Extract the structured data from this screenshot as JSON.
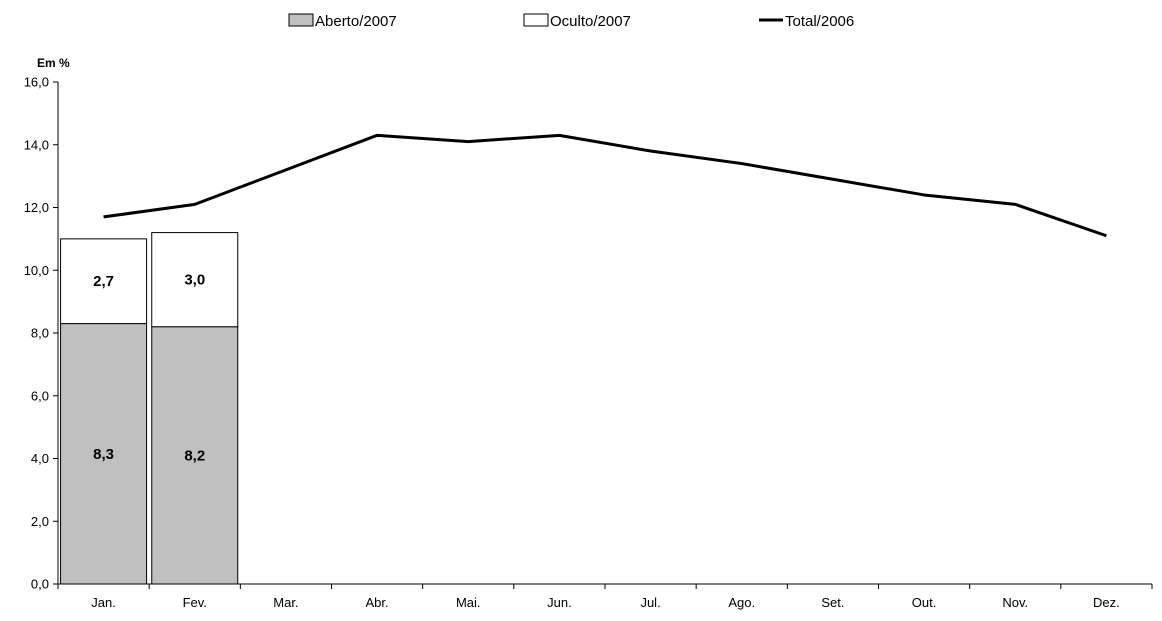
{
  "chart_data": {
    "type": "bar",
    "ylabel": "Em %",
    "xlabel": "",
    "ylim": [
      0,
      16
    ],
    "yticks": [
      "0,0",
      "2,0",
      "4,0",
      "6,0",
      "8,0",
      "10,0",
      "12,0",
      "14,0",
      "16,0"
    ],
    "ytick_values": [
      0,
      2,
      4,
      6,
      8,
      10,
      12,
      14,
      16
    ],
    "categories": [
      "Jan.",
      "Fev.",
      "Mar.",
      "Abr.",
      "Mai.",
      "Jun.",
      "Jul.",
      "Ago.",
      "Set.",
      "Out.",
      "Nov.",
      "Dez."
    ],
    "legend_position": "top-center",
    "grid": false,
    "series": [
      {
        "name": "Aberto/2007",
        "kind": "bar",
        "color": "#c0c0c0",
        "values": [
          8.3,
          8.2,
          null,
          null,
          null,
          null,
          null,
          null,
          null,
          null,
          null,
          null
        ],
        "labels": [
          "8,3",
          "8,2"
        ]
      },
      {
        "name": "Oculto/2007",
        "kind": "bar",
        "color": "#ffffff",
        "values": [
          2.7,
          3.0,
          null,
          null,
          null,
          null,
          null,
          null,
          null,
          null,
          null,
          null
        ],
        "labels": [
          "2,7",
          "3,0"
        ]
      },
      {
        "name": "Total/2006",
        "kind": "line",
        "color": "#000000",
        "values": [
          11.7,
          12.1,
          13.2,
          14.3,
          14.1,
          14.3,
          13.8,
          13.4,
          12.9,
          12.4,
          12.1,
          11.1
        ]
      }
    ]
  }
}
